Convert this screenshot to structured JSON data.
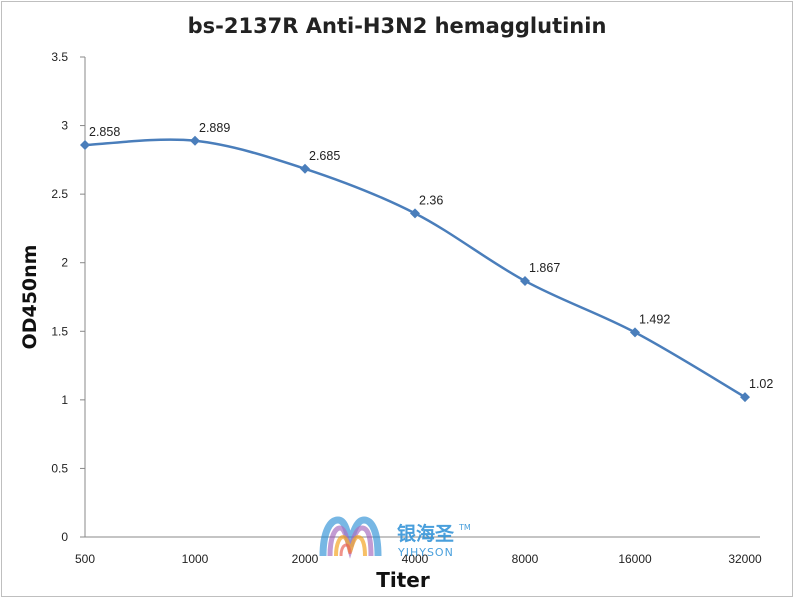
{
  "chart_data": {
    "type": "line",
    "title": "bs-2137R Anti-H3N2 hemagglutinin",
    "xlabel": "Titer",
    "ylabel": "OD450nm",
    "categories": [
      "500",
      "1000",
      "2000",
      "4000",
      "8000",
      "16000",
      "32000"
    ],
    "series": [
      {
        "values": [
          2.858,
          2.889,
          2.685,
          2.36,
          1.867,
          1.492,
          1.02
        ],
        "data_labels": [
          "2.858",
          "2.889",
          "2.685",
          "2.36",
          "1.867",
          "1.492",
          "1.02"
        ],
        "color": "#4a7ebb"
      }
    ],
    "ylim": [
      0,
      3.5
    ],
    "yticks": [
      0,
      0.5,
      1,
      1.5,
      2,
      2.5,
      3,
      3.5
    ],
    "ytick_labels": [
      "0",
      "0.5",
      "1",
      "1.5",
      "2",
      "2.5",
      "3",
      "3.5"
    ],
    "grid": false,
    "legend": "none",
    "smooth": true
  },
  "watermark": {
    "name_cn": "银海圣",
    "name_en": "YIHYSON",
    "trademark": "TM",
    "logo_icon": "yihyson-logo-icon",
    "colors": [
      "#2a8fd6",
      "#5bc0de",
      "#9b59b6",
      "#e74c3c",
      "#f39c12"
    ]
  }
}
